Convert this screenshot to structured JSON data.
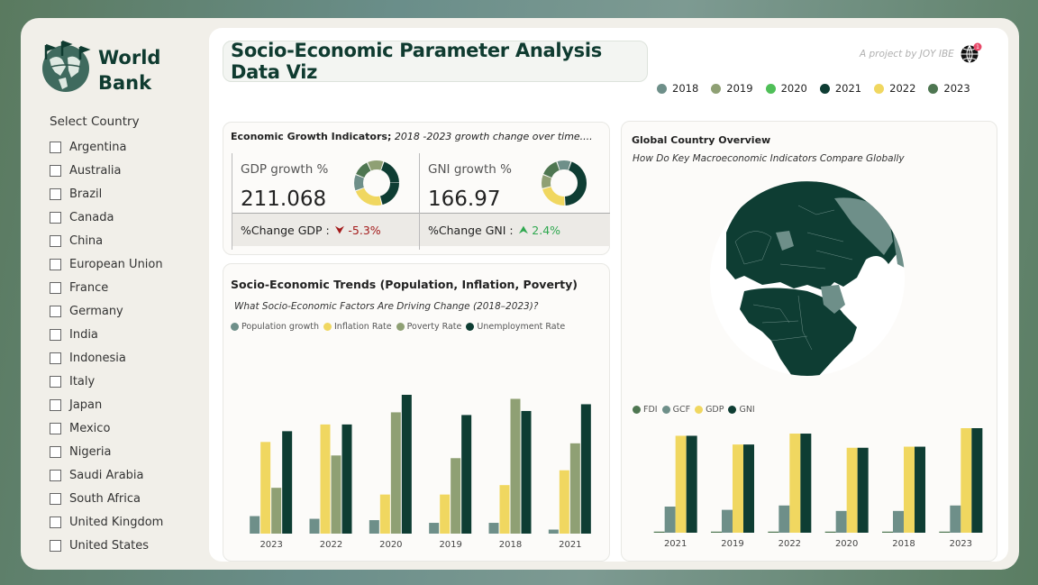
{
  "brand": {
    "line1": "World",
    "line2": "Bank"
  },
  "slicer": {
    "title": "Select Country",
    "countries": [
      "Argentina",
      "Australia",
      "Brazil",
      "Canada",
      "China",
      "European Union",
      "France",
      "Germany",
      "India",
      "Indonesia",
      "Italy",
      "Japan",
      "Mexico",
      "Nigeria",
      "Saudi Arabia",
      "South Africa",
      "United Kingdom",
      "United States"
    ]
  },
  "header": {
    "title": "Socio-Economic Parameter Analysis Data Viz",
    "credit": "A project by JOY IBE",
    "notification_count": "1"
  },
  "year_legend": [
    {
      "label": "2018",
      "color": "#6e8f89"
    },
    {
      "label": "2019",
      "color": "#8fa074"
    },
    {
      "label": "2020",
      "color": "#4fbf58"
    },
    {
      "label": "2021",
      "color": "#0e3d33"
    },
    {
      "label": "2022",
      "color": "#f0d760"
    },
    {
      "label": "2023",
      "color": "#4e7651"
    }
  ],
  "kpis": {
    "heading_bold": "Economic Growth Indicators;",
    "heading_italic": " 2018 -2023 growth change over time....",
    "gdp": {
      "label": "GDP growth %",
      "value": "211.068",
      "change_label": "%Change GDP :",
      "change_value": "-5.3%",
      "direction": "down"
    },
    "gni": {
      "label": "GNI growth %",
      "value": "166.97",
      "change_label": "%Change GNI :",
      "change_value": "2.4%",
      "direction": "up"
    }
  },
  "colors": {
    "population": "#6e8f89",
    "inflation": "#f0d760",
    "poverty": "#8fa074",
    "unemployment": "#0e3d33",
    "fdi": "#4e7651",
    "gcf": "#6e8f89",
    "gdp": "#f0d760",
    "gni": "#0e3d33"
  },
  "trend_chart": {
    "title": "Socio-Economic Trends (Population, Inflation, Poverty)",
    "subtitle": "What Socio-Economic Factors Are Driving Change (2018–2023)?"
  },
  "global_card": {
    "title": "Global Country Overview",
    "subtitle": "How Do Key Macroeconomic Indicators Compare Globally"
  },
  "chart_data": [
    {
      "type": "bar",
      "categories": [
        "2023",
        "2022",
        "2020",
        "2019",
        "2018",
        "2021"
      ],
      "series": [
        {
          "name": "Population growth",
          "values": [
            1.3,
            1.1,
            1.0,
            0.8,
            0.8,
            0.3
          ]
        },
        {
          "name": "Inflation Rate",
          "values": [
            6.8,
            8.1,
            2.9,
            2.9,
            3.6,
            4.7
          ]
        },
        {
          "name": "Poverty Rate",
          "values": [
            3.4,
            5.8,
            9.0,
            5.6,
            10.0,
            6.7
          ]
        },
        {
          "name": "Unemployment Rate",
          "values": [
            7.6,
            8.1,
            10.3,
            8.8,
            9.1,
            9.6
          ]
        }
      ]
    },
    {
      "type": "bar",
      "categories": [
        "2021",
        "2019",
        "2022",
        "2020",
        "2018",
        "2023"
      ],
      "series": [
        {
          "name": "FDI",
          "values": [
            0.1,
            0.1,
            0.1,
            0.1,
            0.1,
            0.1
          ]
        },
        {
          "name": "GCF",
          "values": [
            2.4,
            2.1,
            2.5,
            2.0,
            2.0,
            2.5
          ]
        },
        {
          "name": "GDP",
          "values": [
            8.9,
            8.1,
            9.1,
            7.8,
            7.9,
            9.6
          ]
        },
        {
          "name": "GNI",
          "values": [
            8.9,
            8.1,
            9.1,
            7.8,
            7.9,
            9.6
          ]
        }
      ]
    }
  ]
}
